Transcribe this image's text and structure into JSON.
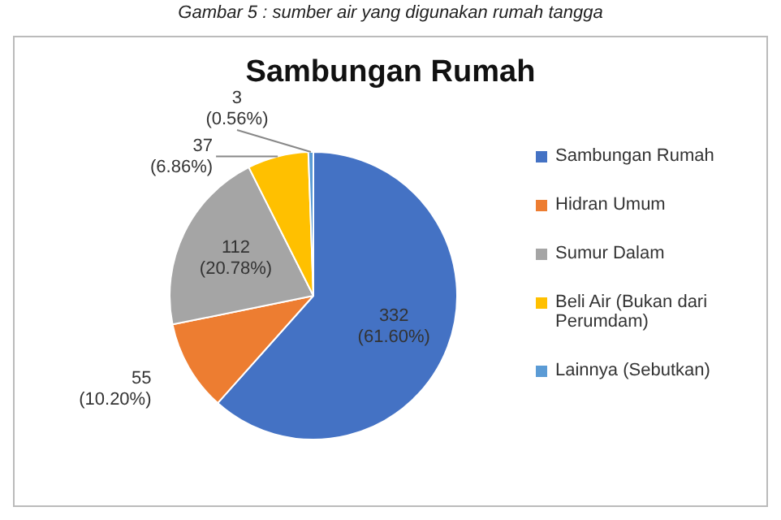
{
  "chart_data": {
    "type": "pie",
    "title": "Sambungan Rumah",
    "annotations": [
      "Gambar 5 : sumber air yang digunakan rumah tangga"
    ],
    "categories": [
      "Sambungan Rumah",
      "Hidran Umum",
      "Sumur Dalam",
      "Beli Air (Bukan dari Perumdam)",
      "Lainnya (Sebutkan)"
    ],
    "values": [
      332,
      55,
      112,
      37,
      3
    ],
    "colors": [
      "#4472c4",
      "#ed7d31",
      "#a5a5a5",
      "#ffc000",
      "#5b9bd5"
    ],
    "value_labels": [
      "332\n(61.60%)",
      "55\n(10.20%)",
      "112\n(20.78%)",
      "37\n(6.86%)",
      "3\n(0.56%)"
    ],
    "legend": "right"
  }
}
